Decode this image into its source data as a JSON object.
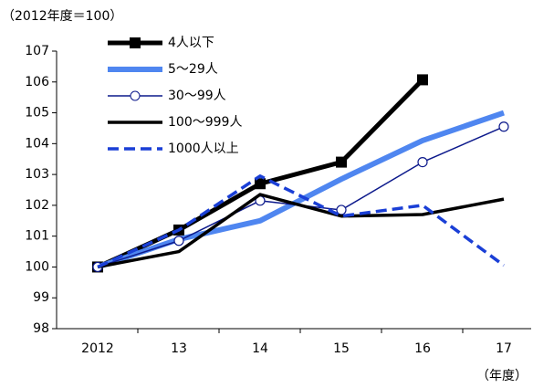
{
  "chart_data": {
    "type": "line",
    "subtitle": "（2012年度＝100）",
    "x_label": "（年度）",
    "categories": [
      "2012",
      "13",
      "14",
      "15",
      "16",
      "17"
    ],
    "series": [
      {
        "name": "4人以下",
        "color": "#000000",
        "width": 5,
        "marker": "square",
        "dash": false,
        "values": [
          100,
          101.2,
          102.7,
          103.4,
          106.07,
          null
        ]
      },
      {
        "name": "5～29人",
        "color": "#4f86f0",
        "width": 6,
        "marker": null,
        "dash": false,
        "values": [
          100,
          100.9,
          101.5,
          102.85,
          104.1,
          105.0
        ]
      },
      {
        "name": "30～99人",
        "color": "#0d1a8c",
        "width": 1.5,
        "marker": "circle",
        "dash": false,
        "values": [
          100,
          100.85,
          102.15,
          101.85,
          103.4,
          104.55
        ]
      },
      {
        "name": "100～999人",
        "color": "#000000",
        "width": 3.5,
        "marker": null,
        "dash": false,
        "values": [
          100,
          100.5,
          102.35,
          101.65,
          101.7,
          102.2
        ]
      },
      {
        "name": "1000人以上",
        "color": "#1a3fd6",
        "width": 3.5,
        "marker": null,
        "dash": true,
        "values": [
          100,
          101.2,
          102.95,
          101.65,
          102.0,
          100.05
        ]
      }
    ],
    "ylim": [
      98,
      107
    ],
    "yticks": [
      98,
      99,
      100,
      101,
      102,
      103,
      104,
      105,
      106,
      107
    ]
  }
}
